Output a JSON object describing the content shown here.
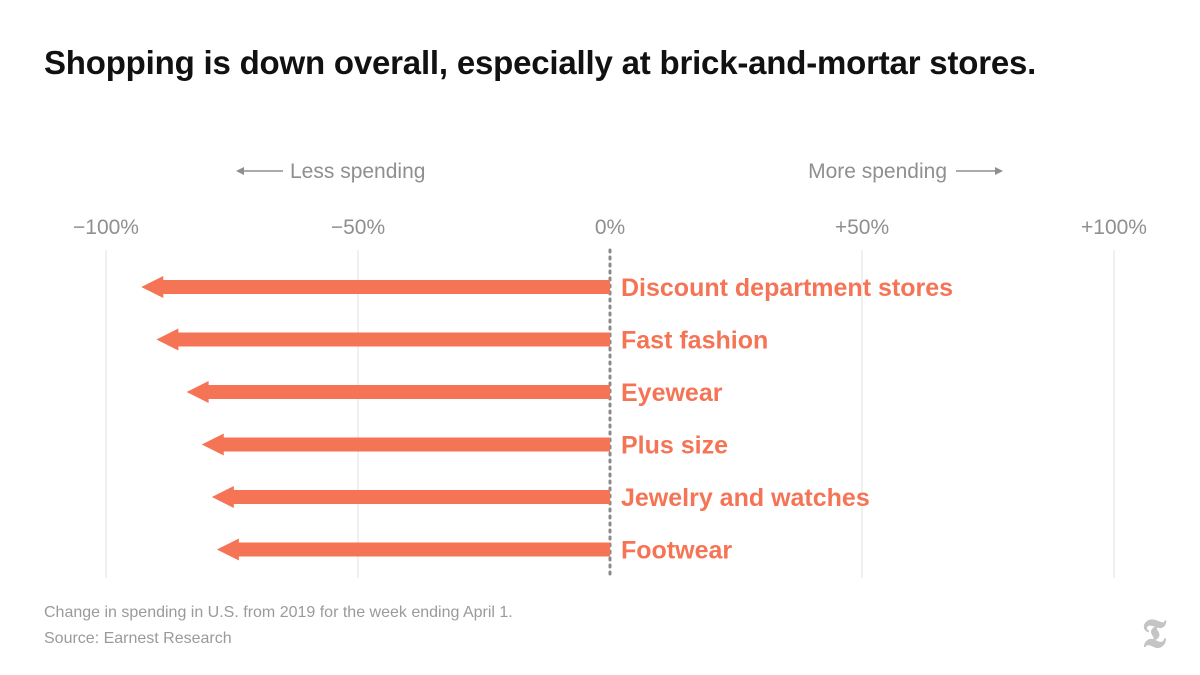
{
  "title": "Shopping is down overall, especially at brick-and-mortar stores.",
  "chart_data": {
    "type": "bar",
    "orientation": "horizontal",
    "style": "arrow",
    "color": "#f47455",
    "direction_labels": {
      "negative": "Less spending",
      "positive": "More spending"
    },
    "xlim": [
      -100,
      100
    ],
    "ticks": [
      {
        "value": -100,
        "label": "−100%"
      },
      {
        "value": -50,
        "label": "−50%"
      },
      {
        "value": 0,
        "label": "0%"
      },
      {
        "value": 50,
        "label": "+50%"
      },
      {
        "value": 100,
        "label": "+100%"
      }
    ],
    "categories": [
      "Discount department stores",
      "Fast fashion",
      "Eyewear",
      "Plus size",
      "Jewelry and watches",
      "Footwear"
    ],
    "values": [
      -93,
      -90,
      -84,
      -81,
      -79,
      -78
    ],
    "grid": true
  },
  "note": "Change in spending in U.S. from 2019 for the week ending April 1.",
  "source": "Source: Earnest Research",
  "logo_icon": "nyt-logo-icon"
}
